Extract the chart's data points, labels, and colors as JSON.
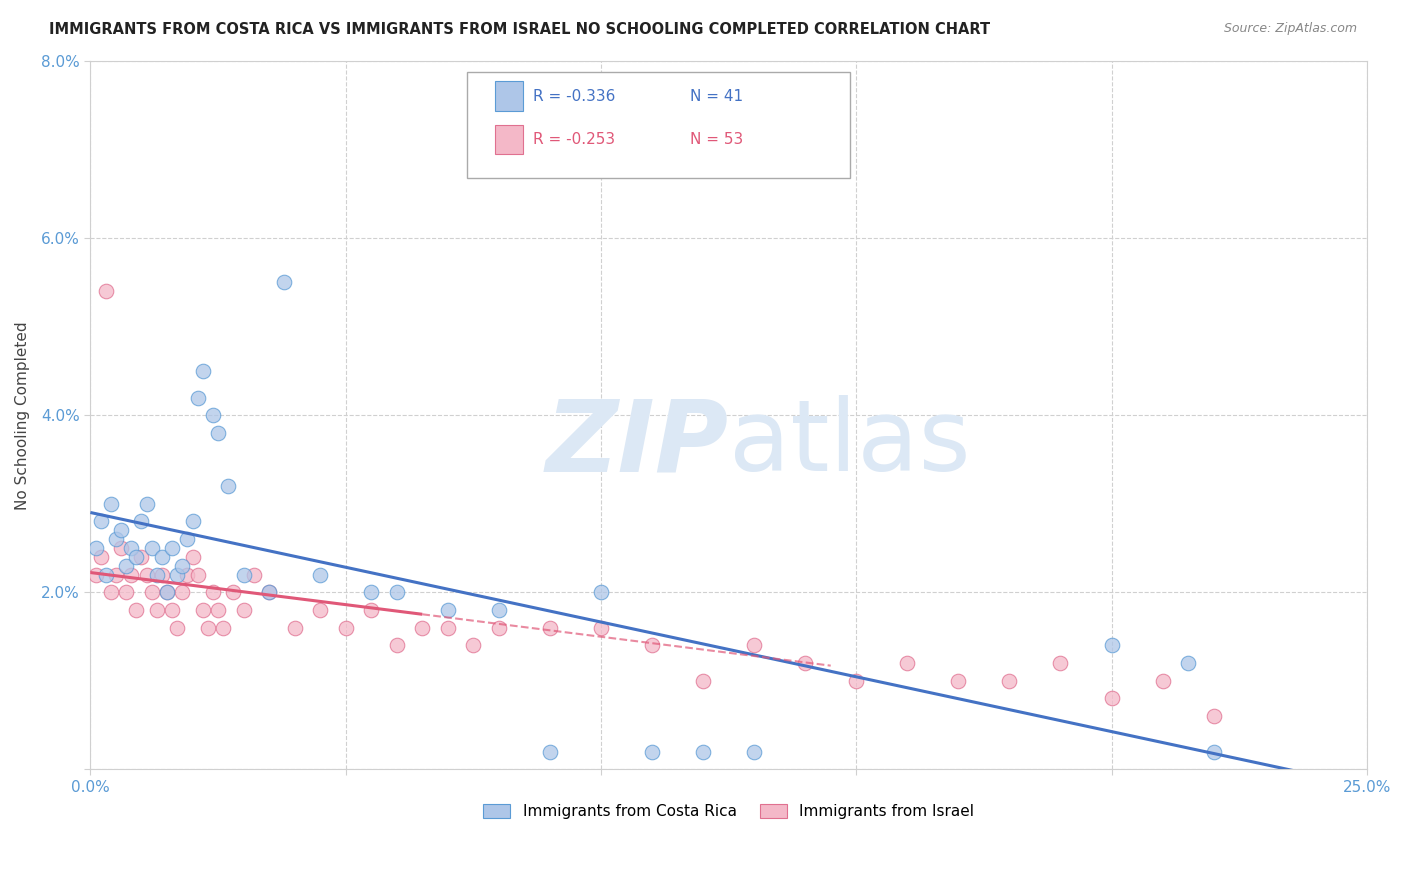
{
  "title": "IMMIGRANTS FROM COSTA RICA VS IMMIGRANTS FROM ISRAEL NO SCHOOLING COMPLETED CORRELATION CHART",
  "source": "Source: ZipAtlas.com",
  "ylabel": "No Schooling Completed",
  "xlim": [
    0.0,
    0.25
  ],
  "ylim": [
    0.0,
    0.08
  ],
  "xticks": [
    0.0,
    0.05,
    0.1,
    0.15,
    0.2,
    0.25
  ],
  "xticklabels": [
    "0.0%",
    "",
    "",
    "",
    "",
    "25.0%"
  ],
  "yticks": [
    0.0,
    0.02,
    0.04,
    0.06,
    0.08
  ],
  "yticklabels": [
    "",
    "2.0%",
    "4.0%",
    "6.0%",
    "8.0%"
  ],
  "legend_r_cr": "-0.336",
  "legend_n_cr": "41",
  "legend_r_is": "-0.253",
  "legend_n_is": "53",
  "color_cr_fill": "#aec6e8",
  "color_cr_edge": "#5b9bd5",
  "color_is_fill": "#f4b8c8",
  "color_is_edge": "#e07090",
  "trendline_cr": "#4472c4",
  "trendline_is": "#e05878",
  "watermark_color": "#dce8f5",
  "bg": "#ffffff",
  "tick_color": "#5b9bd5",
  "grid_color": "#d0d0d0",
  "costa_rica_x": [
    0.001,
    0.002,
    0.003,
    0.004,
    0.005,
    0.006,
    0.007,
    0.008,
    0.009,
    0.01,
    0.011,
    0.012,
    0.013,
    0.014,
    0.015,
    0.016,
    0.017,
    0.018,
    0.019,
    0.02,
    0.021,
    0.022,
    0.024,
    0.025,
    0.027,
    0.03,
    0.035,
    0.038,
    0.045,
    0.055,
    0.06,
    0.07,
    0.08,
    0.09,
    0.1,
    0.11,
    0.12,
    0.13,
    0.2,
    0.215,
    0.22
  ],
  "costa_rica_y": [
    0.025,
    0.028,
    0.022,
    0.03,
    0.026,
    0.027,
    0.023,
    0.025,
    0.024,
    0.028,
    0.03,
    0.025,
    0.022,
    0.024,
    0.02,
    0.025,
    0.022,
    0.023,
    0.026,
    0.028,
    0.042,
    0.045,
    0.04,
    0.038,
    0.032,
    0.022,
    0.02,
    0.055,
    0.022,
    0.02,
    0.02,
    0.018,
    0.018,
    0.002,
    0.02,
    0.002,
    0.002,
    0.002,
    0.014,
    0.012,
    0.002
  ],
  "israel_x": [
    0.001,
    0.002,
    0.003,
    0.004,
    0.005,
    0.006,
    0.007,
    0.008,
    0.009,
    0.01,
    0.011,
    0.012,
    0.013,
    0.014,
    0.015,
    0.016,
    0.017,
    0.018,
    0.019,
    0.02,
    0.021,
    0.022,
    0.023,
    0.024,
    0.025,
    0.026,
    0.028,
    0.03,
    0.032,
    0.035,
    0.04,
    0.045,
    0.05,
    0.055,
    0.06,
    0.065,
    0.07,
    0.075,
    0.08,
    0.09,
    0.1,
    0.11,
    0.12,
    0.13,
    0.14,
    0.15,
    0.16,
    0.17,
    0.18,
    0.19,
    0.2,
    0.21,
    0.22
  ],
  "israel_y": [
    0.022,
    0.024,
    0.054,
    0.02,
    0.022,
    0.025,
    0.02,
    0.022,
    0.018,
    0.024,
    0.022,
    0.02,
    0.018,
    0.022,
    0.02,
    0.018,
    0.016,
    0.02,
    0.022,
    0.024,
    0.022,
    0.018,
    0.016,
    0.02,
    0.018,
    0.016,
    0.02,
    0.018,
    0.022,
    0.02,
    0.016,
    0.018,
    0.016,
    0.018,
    0.014,
    0.016,
    0.016,
    0.014,
    0.016,
    0.016,
    0.016,
    0.014,
    0.01,
    0.014,
    0.012,
    0.01,
    0.012,
    0.01,
    0.01,
    0.012,
    0.008,
    0.01,
    0.006
  ]
}
